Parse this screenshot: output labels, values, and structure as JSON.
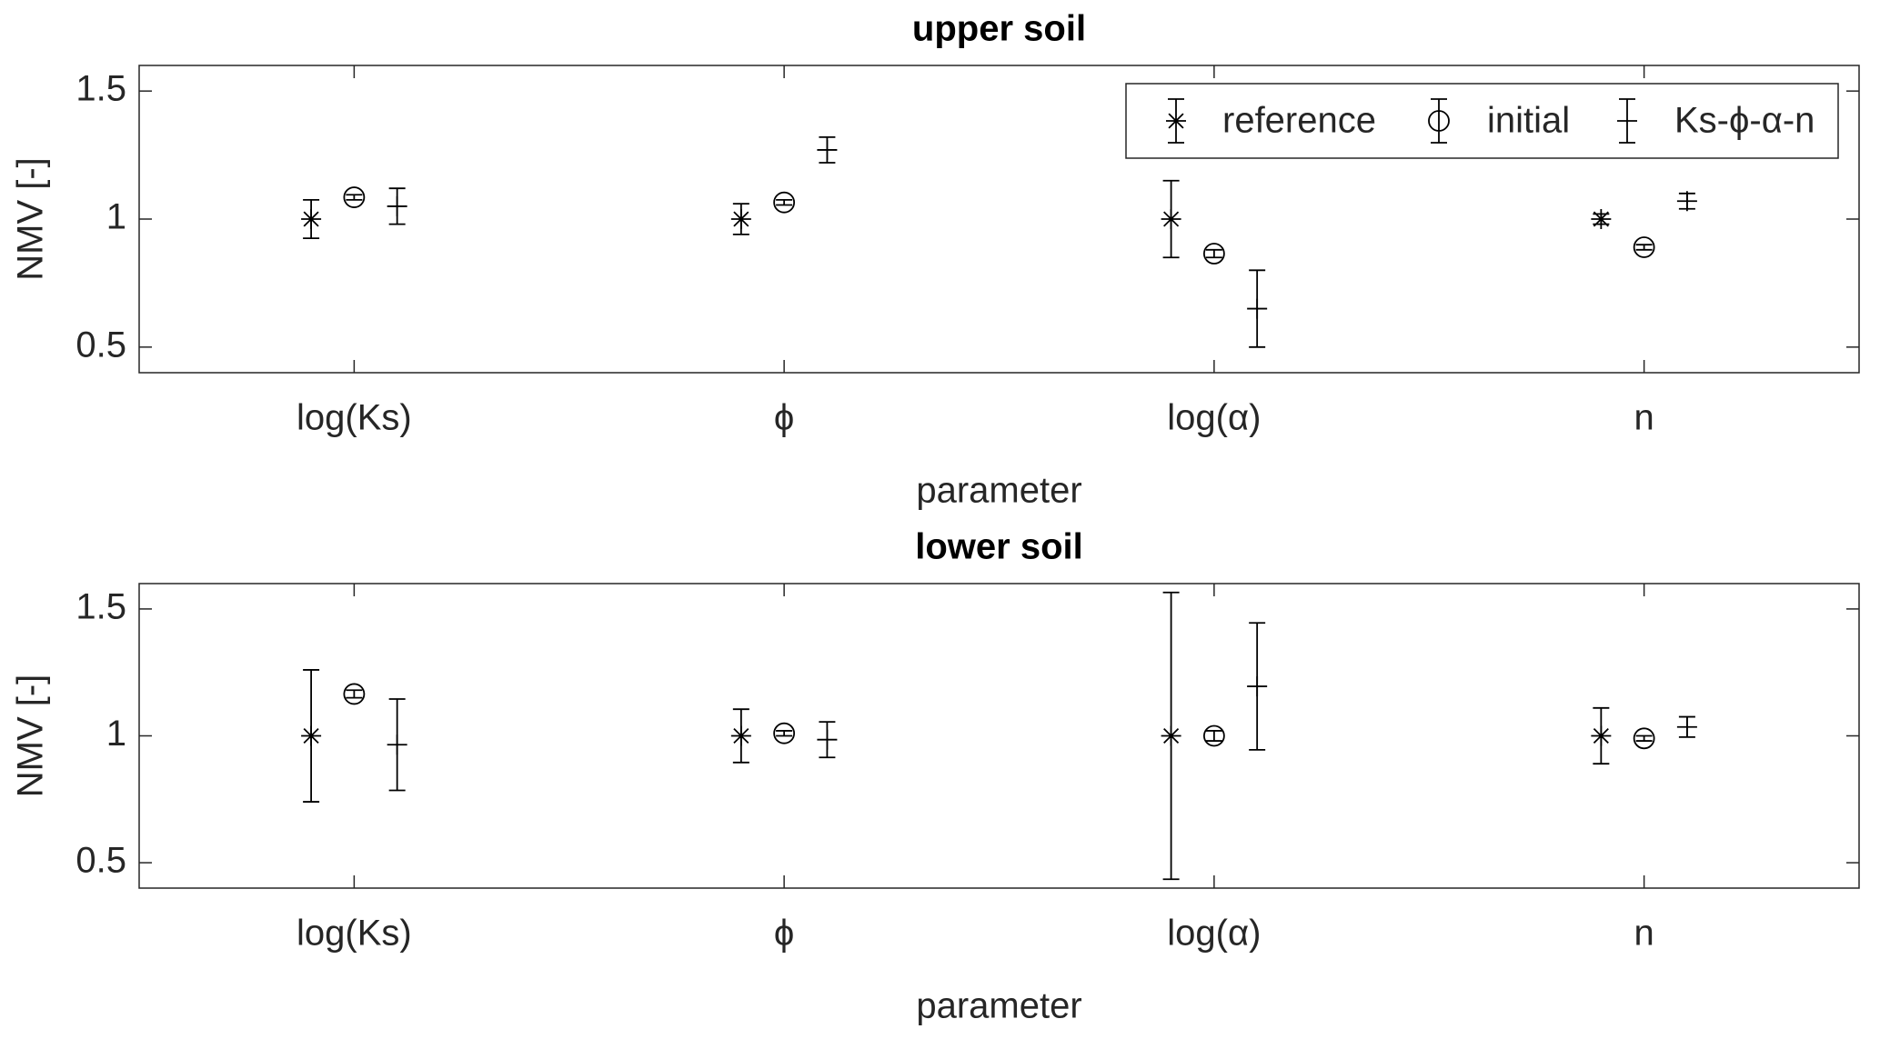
{
  "chart_data": [
    {
      "type": "errorbar",
      "title": "upper soil",
      "xlabel": "parameter",
      "ylabel": "NMV [-]",
      "categories": [
        "log(Ks)",
        "ϕ",
        "log(α)",
        "n"
      ],
      "xlim": [
        0.5,
        4.5
      ],
      "ylim": [
        0.4,
        1.6
      ],
      "yticks": [
        0.5,
        1,
        1.5
      ],
      "legend": "northeast",
      "series": [
        {
          "name": "reference",
          "marker": "asterisk",
          "color": "#000000",
          "values": [
            1,
            1,
            1,
            1
          ],
          "errors": [
            0.075,
            0.06,
            0.15,
            0.02
          ]
        },
        {
          "name": "initial",
          "marker": "circle",
          "color": "#000000",
          "values": [
            1.085,
            1.065,
            0.865,
            0.89
          ],
          "errors": [
            0.01,
            0.01,
            0.015,
            0.01
          ]
        },
        {
          "name": "Ks-ϕ-α-n",
          "marker": "plus",
          "color": "#000000",
          "values": [
            1.05,
            1.27,
            0.65,
            1.07
          ],
          "errors": [
            0.07,
            0.05,
            0.15,
            0.03
          ]
        }
      ]
    },
    {
      "type": "errorbar",
      "title": "lower soil",
      "xlabel": "parameter",
      "ylabel": "NMV [-]",
      "categories": [
        "log(Ks)",
        "ϕ",
        "log(α)",
        "n"
      ],
      "xlim": [
        0.5,
        4.5
      ],
      "ylim": [
        0.4,
        1.6
      ],
      "yticks": [
        0.5,
        1,
        1.5
      ],
      "series": [
        {
          "marker": "asterisk",
          "color": "#000000",
          "values": [
            1,
            1,
            1,
            1
          ],
          "errors": [
            0.26,
            0.105,
            0.565,
            0.11
          ]
        },
        {
          "marker": "circle",
          "color": "#000000",
          "values": [
            1.165,
            1.01,
            1.0,
            0.99
          ],
          "errors": [
            0.015,
            0.01,
            0.02,
            0.01
          ]
        },
        {
          "marker": "plus",
          "color": "#000000",
          "values": [
            0.965,
            0.985,
            1.195,
            1.035
          ],
          "errors": [
            0.18,
            0.07,
            0.25,
            0.04
          ]
        }
      ]
    }
  ]
}
